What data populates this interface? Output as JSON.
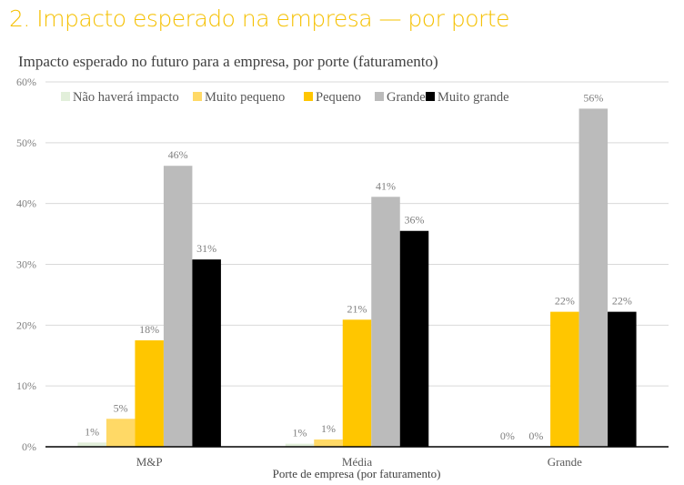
{
  "header": {
    "title": "2. Impacto esperado na empresa — por porte"
  },
  "chart_data": {
    "type": "bar",
    "title": "Impacto esperado no futuro para a empresa, por porte (faturamento)",
    "xlabel": "Porte de empresa (por faturamento)",
    "ylabel": "",
    "ylim": [
      0,
      60
    ],
    "yticks": [
      "0%",
      "10%",
      "20%",
      "30%",
      "40%",
      "50%",
      "60%"
    ],
    "grid": true,
    "legend": "top",
    "categories": [
      "M&P",
      "Média",
      "Grande"
    ],
    "series": [
      {
        "name": "Não haverá impacto",
        "color": "#E2EFDA",
        "values": [
          0.7,
          0.5,
          0
        ],
        "labels": [
          "1%",
          "1%",
          "0%"
        ]
      },
      {
        "name": "Muito pequeno",
        "color": "#FFD966",
        "values": [
          4.6,
          1.2,
          0
        ],
        "labels": [
          "5%",
          "1%",
          "0%"
        ]
      },
      {
        "name": "Pequeno",
        "color": "#FFC600",
        "values": [
          17.5,
          20.9,
          22.2
        ],
        "labels": [
          "18%",
          "21%",
          "22%"
        ]
      },
      {
        "name": "Grande",
        "color": "#BBBBBB",
        "values": [
          46.2,
          41.1,
          55.6
        ],
        "labels": [
          "46%",
          "41%",
          "56%"
        ]
      },
      {
        "name": "Muito grande",
        "color": "#000000",
        "values": [
          30.8,
          35.5,
          22.2
        ],
        "labels": [
          "31%",
          "36%",
          "22%"
        ]
      }
    ]
  }
}
